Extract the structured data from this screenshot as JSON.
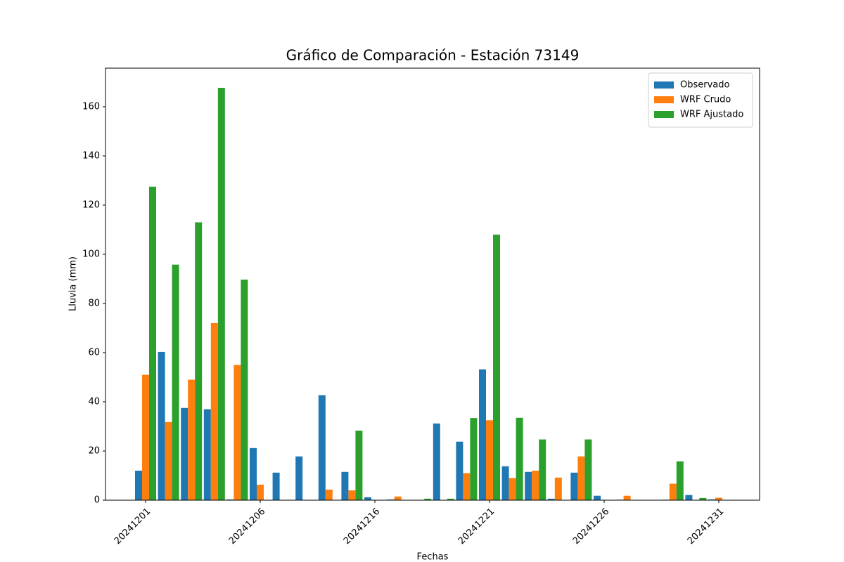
{
  "chart_data": {
    "type": "bar",
    "title": "Gráfico de Comparación - Estación 73149",
    "x_label": "Fechas",
    "y_label": "Lluvia (mm)",
    "categories": [
      "20241201",
      null,
      null,
      null,
      null,
      "20241206",
      null,
      null,
      null,
      null,
      "20241216",
      null,
      null,
      null,
      null,
      "20241221",
      null,
      null,
      null,
      null,
      "20241226",
      null,
      null,
      null,
      null,
      "20241231"
    ],
    "series": [
      {
        "name": "Observado",
        "color": "#1f77b4",
        "values": [
          12,
          60.3,
          37.5,
          37,
          0.3,
          21.2,
          11.2,
          17.8,
          42.7,
          11.5,
          1.2,
          0.3,
          0,
          31.2,
          23.8,
          53.2,
          13.8,
          11.5,
          0.6,
          11.2,
          1.8,
          0.2,
          0,
          0.2,
          2.1,
          0.3
        ]
      },
      {
        "name": "WRF Crudo",
        "color": "#ff7f0e",
        "values": [
          51,
          31.8,
          49,
          72,
          55,
          6.3,
          0,
          0,
          4.3,
          4,
          0,
          1.5,
          0,
          0,
          11,
          32.5,
          9,
          12,
          9.2,
          17.8,
          0,
          1.8,
          0,
          6.7,
          0,
          1
        ]
      },
      {
        "name": "WRF Ajustado",
        "color": "#2ca02c",
        "values": [
          127.5,
          95.8,
          113,
          167.7,
          89.7,
          0,
          0,
          0,
          0,
          28.3,
          0,
          0,
          0.6,
          0.6,
          33.4,
          108,
          33.5,
          24.7,
          0,
          24.7,
          0,
          0,
          0,
          15.8,
          0.9,
          0
        ]
      }
    ],
    "ylim": [
      0,
      175.7
    ],
    "yticks": [
      0,
      20,
      40,
      60,
      80,
      100,
      120,
      140,
      160
    ],
    "legend": "upper right"
  }
}
